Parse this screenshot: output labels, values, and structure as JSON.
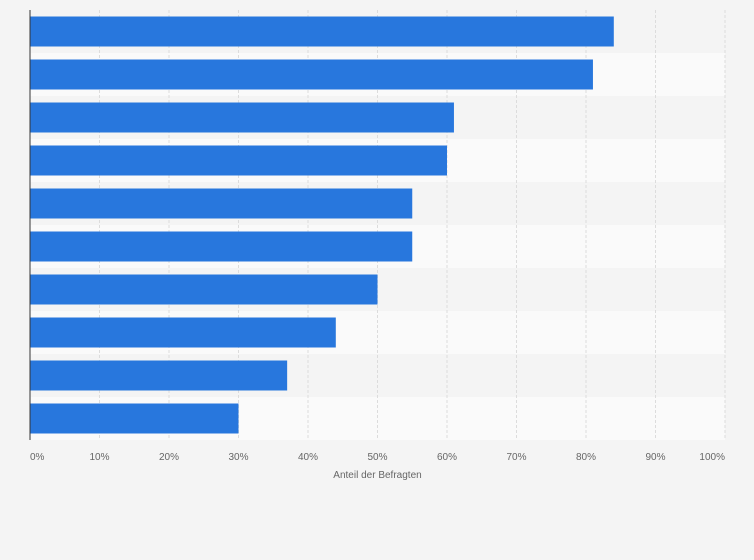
{
  "chart_data": {
    "type": "bar",
    "orientation": "horizontal",
    "categories": [
      "",
      "",
      "",
      "",
      "",
      "",
      "",
      "",
      "",
      ""
    ],
    "values": [
      84,
      81,
      61,
      60,
      55,
      55,
      50,
      44,
      37,
      30
    ],
    "xlabel": "Anteil der Befragten",
    "ylabel": "",
    "xlim": [
      0,
      100
    ],
    "x_ticks": [
      "0%",
      "10%",
      "20%",
      "30%",
      "40%",
      "50%",
      "60%",
      "70%",
      "80%",
      "90%",
      "100%"
    ],
    "grid": "vertical dashed",
    "bar_color": "#2877dd",
    "band_colors": [
      "#f4f4f4",
      "#fafafa"
    ]
  }
}
